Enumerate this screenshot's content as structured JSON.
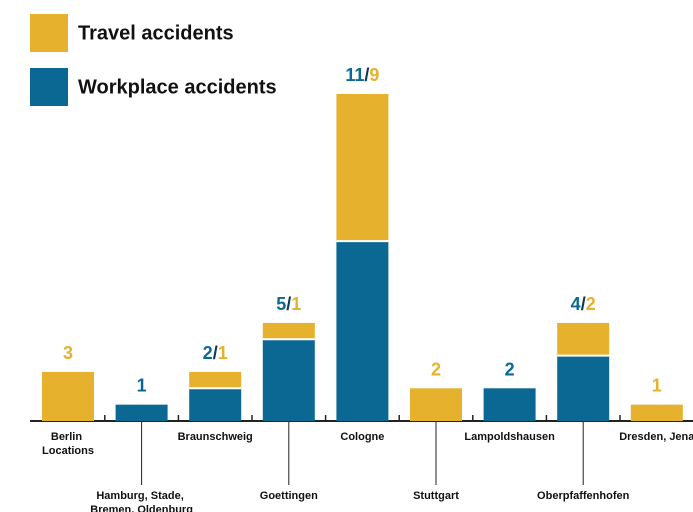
{
  "chart_data": {
    "type": "stacked_bar",
    "categories": [
      "Berlin Locations",
      "Hamburg, Stade, Bremen, Oldenburg",
      "Braunschweig",
      "Goettingen",
      "Cologne",
      "Stuttgart",
      "Lampoldshausen",
      "Oberpfaffenhofen",
      "Dresden, Jena"
    ],
    "series": [
      {
        "name": "Travel accidents",
        "color": "#e6b22e",
        "values": [
          3,
          0,
          1,
          1,
          9,
          2,
          0,
          2,
          1
        ]
      },
      {
        "name": "Workplace accidents",
        "color": "#0b6892",
        "values": [
          0,
          1,
          2,
          5,
          11,
          0,
          2,
          4,
          0
        ]
      }
    ],
    "ylim": [
      0,
      20
    ]
  }
}
